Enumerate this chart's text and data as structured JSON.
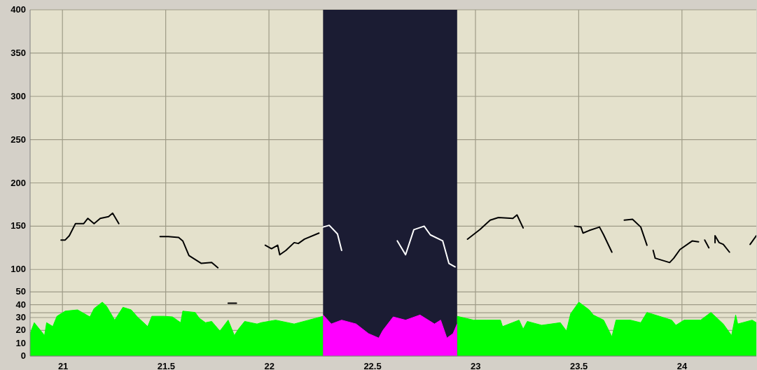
{
  "chart_data": {
    "type": "line",
    "xlim": [
      20.84,
      24.36
    ],
    "xticks": [
      21,
      21.5,
      22,
      22.5,
      23,
      23.5,
      24
    ],
    "ylim": [
      0,
      400
    ],
    "yticks": [
      {
        "value": 50,
        "label": null
      },
      100,
      150,
      200,
      250,
      300,
      350,
      400
    ],
    "y2lim": [
      0,
      270
    ],
    "y2ticks": [
      0,
      10,
      20,
      30,
      40,
      50
    ],
    "grid": true,
    "bands": [
      {
        "axis": "x",
        "from": 22.26,
        "to": 22.91,
        "color": "#1b1c33"
      }
    ],
    "series": [
      {
        "type": "area",
        "axis": "y2",
        "color": "#00ff00",
        "x": [
          20.84,
          20.86,
          20.91,
          20.92,
          20.95,
          20.97,
          21.01,
          21.07,
          21.13,
          21.15,
          21.19,
          21.21,
          21.25,
          21.29,
          21.33,
          21.36,
          21.41,
          21.43,
          21.49,
          21.53,
          21.57,
          21.58,
          21.64,
          21.66,
          21.69,
          21.72,
          21.76,
          21.8,
          21.83,
          21.85,
          21.88,
          21.94,
          21.96,
          22.03,
          22.12,
          22.19,
          22.26,
          22.5,
          22.91,
          22.99,
          23.05,
          23.12,
          23.13,
          23.21,
          23.23,
          23.25,
          23.32,
          23.41,
          23.44,
          23.46,
          23.5,
          23.55,
          23.57,
          23.62,
          23.66,
          23.68,
          23.75,
          23.8,
          23.83,
          23.89,
          23.95,
          23.97,
          24.01,
          24.09,
          24.14,
          24.2,
          24.24,
          24.26,
          24.27,
          24.34,
          24.36
        ],
        "values": [
          17.5,
          26,
          16,
          26,
          23,
          31,
          35,
          36,
          30.5,
          37,
          42,
          39,
          28,
          38,
          36,
          30.5,
          23,
          31,
          31,
          30.5,
          26,
          35,
          34,
          29.5,
          26,
          27,
          19.5,
          28,
          16,
          21,
          27,
          25,
          26,
          28,
          25,
          28,
          31,
          null,
          31,
          28,
          28,
          28,
          23,
          28,
          21,
          27,
          24,
          26,
          19.5,
          33,
          42,
          36,
          32,
          28,
          15,
          28,
          28,
          26,
          34,
          31,
          28,
          24,
          28,
          28,
          34,
          25,
          16,
          32,
          25,
          28,
          26
        ]
      },
      {
        "type": "area",
        "axis": "y2",
        "color": "#ff00ff",
        "x": [
          22.26,
          22.3,
          22.35,
          22.42,
          22.48,
          22.53,
          22.55,
          22.6,
          22.66,
          22.73,
          22.8,
          22.83,
          22.86,
          22.89,
          22.91
        ],
        "values": [
          32,
          25,
          28,
          25,
          17.5,
          14,
          20,
          30.5,
          28,
          32,
          25,
          28,
          14,
          17.5,
          25
        ]
      },
      {
        "type": "line",
        "axis": "y",
        "color": "#000000",
        "x": [
          20.99,
          21.01,
          21.03,
          21.06,
          21.1,
          21.12,
          21.15,
          21.18,
          21.22,
          21.24,
          21.25,
          21.27,
          21.37,
          21.47,
          21.51,
          21.56,
          21.58,
          21.61,
          21.67,
          21.72,
          21.75,
          21.77,
          21.8,
          21.84,
          21.9,
          21.98,
          22.01,
          22.04,
          22.05,
          22.08,
          22.12,
          22.14,
          22.17,
          22.24,
          22.6,
          22.96,
          23.02,
          23.07,
          23.11,
          23.18,
          23.2,
          23.23,
          23.35,
          23.48,
          23.51,
          23.52,
          23.55,
          23.6,
          23.62,
          23.66,
          23.69,
          23.72,
          23.76,
          23.8,
          23.83,
          23.845,
          23.86,
          23.87,
          23.94,
          23.96,
          23.99,
          24.05,
          24.08,
          24.095,
          24.11,
          24.13,
          24.145,
          24.16,
          24.16,
          24.18,
          24.2,
          24.23,
          24.28,
          24.33,
          24.36
        ],
        "values": [
          134,
          134,
          139,
          153,
          153,
          159,
          153,
          159,
          161,
          165,
          161,
          153,
          null,
          138,
          138,
          137,
          133,
          116,
          107,
          108,
          102,
          null,
          61,
          61,
          null,
          128,
          124,
          128,
          117,
          122,
          131,
          130,
          135,
          142,
          null,
          135,
          146,
          157,
          160,
          159,
          163,
          148,
          null,
          150,
          149,
          142,
          145,
          149,
          140,
          120,
          null,
          157,
          158,
          149,
          128,
          null,
          122,
          113,
          108,
          113,
          123,
          133,
          132,
          null,
          134,
          125,
          null,
          131,
          139,
          131,
          129,
          120,
          null,
          129,
          139
        ]
      },
      {
        "type": "line",
        "axis": "y",
        "color": "#ffffff",
        "x": [
          22.26,
          22.29,
          22.33,
          22.35,
          22.5,
          22.62,
          22.66,
          22.7,
          22.75,
          22.78,
          22.84,
          22.87,
          22.9
        ],
        "values": [
          149,
          151,
          141,
          122,
          null,
          133,
          117,
          146,
          150,
          140,
          133,
          107,
          103
        ]
      }
    ]
  }
}
